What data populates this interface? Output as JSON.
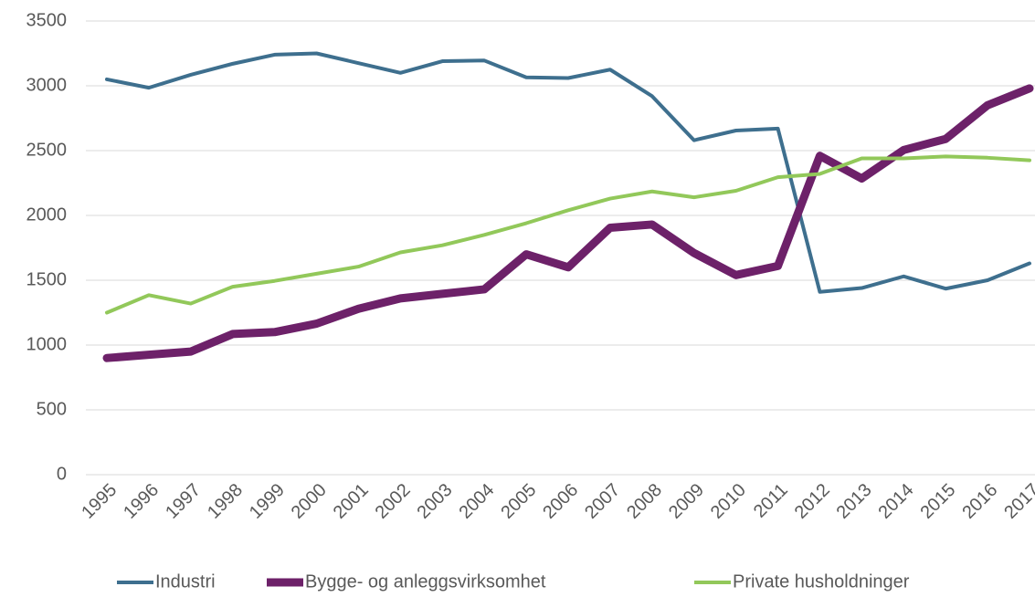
{
  "chart_data": {
    "type": "line",
    "categories": [
      "1995",
      "1996",
      "1997",
      "1998",
      "1999",
      "2000",
      "2001",
      "2002",
      "2003",
      "2004",
      "2005",
      "2006",
      "2007",
      "2008",
      "2009",
      "2010",
      "2011",
      "2012",
      "2013",
      "2014",
      "2015",
      "2016",
      "2017"
    ],
    "series": [
      {
        "name": "Industri",
        "color": "#3e6f8e",
        "values": [
          3050,
          2985,
          3085,
          3170,
          3240,
          3250,
          3175,
          3100,
          3190,
          3195,
          3065,
          3060,
          3125,
          2920,
          2580,
          2655,
          2670,
          1410,
          1440,
          1530,
          1435,
          1500,
          1630
        ]
      },
      {
        "name": "Bygge- og anleggsvirksomhet",
        "color": "#6d2169",
        "values": [
          900,
          925,
          950,
          1085,
          1100,
          1165,
          1280,
          1360,
          1395,
          1430,
          1700,
          1600,
          1905,
          1930,
          1710,
          1540,
          1610,
          2460,
          2285,
          2505,
          2590,
          2850,
          2980
        ]
      },
      {
        "name": "Private husholdninger",
        "color": "#92c85a",
        "values": [
          1250,
          1385,
          1320,
          1450,
          1495,
          1550,
          1605,
          1715,
          1770,
          1850,
          1940,
          2040,
          2130,
          2185,
          2140,
          2190,
          2295,
          2320,
          2440,
          2440,
          2455,
          2445,
          2425
        ]
      }
    ],
    "ylim": [
      0,
      3500
    ],
    "yticks": [
      0,
      500,
      1000,
      1500,
      2000,
      2500,
      3000,
      3500
    ],
    "grid": true,
    "legend": "bottom"
  }
}
